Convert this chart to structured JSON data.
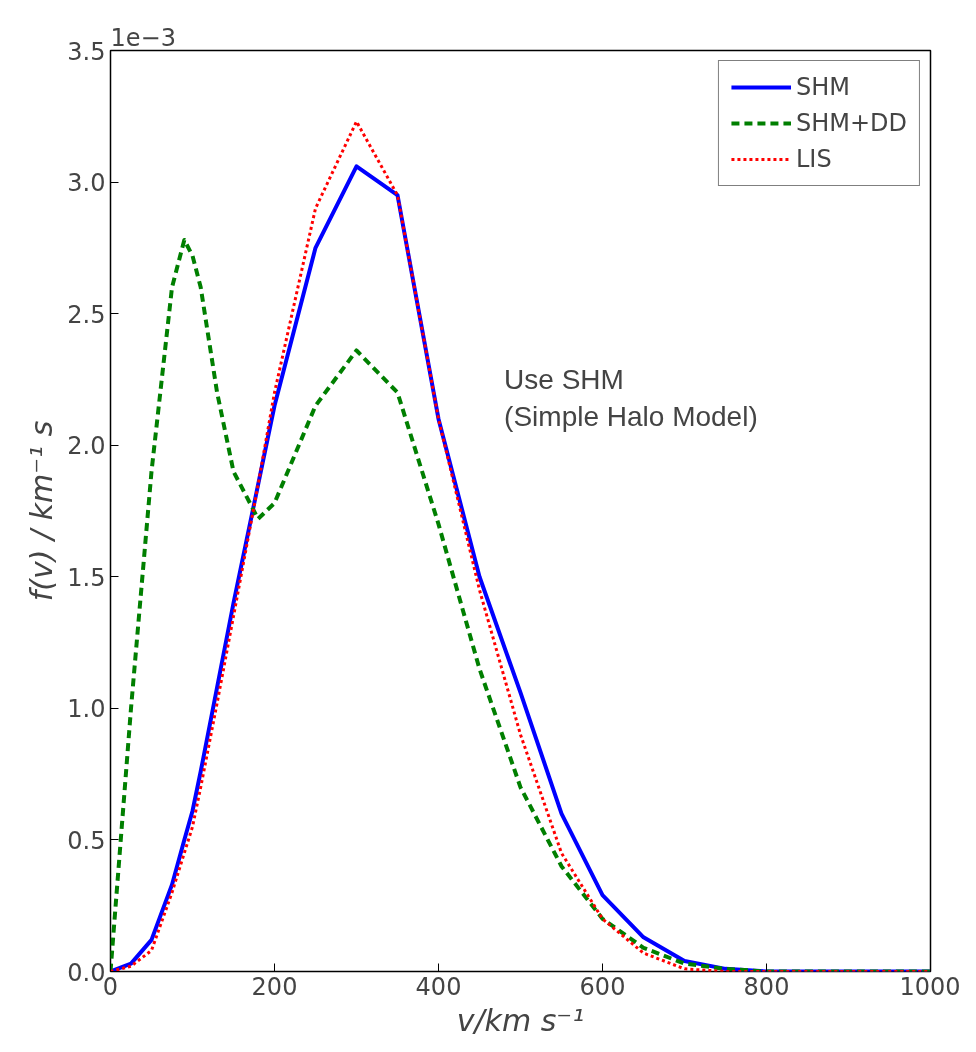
{
  "chart_data": {
    "type": "line",
    "xlabel": "v/km s⁻¹",
    "ylabel": "f(v) / km⁻¹ s",
    "x": [
      0,
      25,
      50,
      75,
      90,
      100,
      110,
      130,
      150,
      180,
      200,
      250,
      300,
      350,
      400,
      450,
      500,
      550,
      600,
      650,
      700,
      750,
      800,
      900,
      1000
    ],
    "series": [
      {
        "name": "SHM",
        "color": "#0000ff",
        "line_style": "solid",
        "values": [
          0,
          0.03,
          0.12,
          0.33,
          0.5,
          0.61,
          0.76,
          1.08,
          1.4,
          1.85,
          2.15,
          2.75,
          3.06,
          2.95,
          2.1,
          1.5,
          1.06,
          0.6,
          0.29,
          0.13,
          0.04,
          0.01,
          0,
          0,
          0
        ]
      },
      {
        "name": "SHM+DD",
        "color": "#007f00",
        "line_style": "dashed",
        "values": [
          0,
          1.0,
          1.9,
          2.6,
          2.78,
          2.72,
          2.6,
          2.2,
          1.9,
          1.72,
          1.78,
          2.15,
          2.36,
          2.2,
          1.7,
          1.15,
          0.7,
          0.4,
          0.2,
          0.09,
          0.03,
          0.01,
          0,
          0,
          0
        ]
      },
      {
        "name": "LIS",
        "color": "#ff0000",
        "line_style": "dotted",
        "values": [
          0,
          0.02,
          0.08,
          0.3,
          0.45,
          0.55,
          0.7,
          1.02,
          1.35,
          1.85,
          2.2,
          2.9,
          3.23,
          2.95,
          2.1,
          1.45,
          0.9,
          0.45,
          0.2,
          0.07,
          0.01,
          0,
          0,
          0,
          0
        ]
      }
    ],
    "xlim": [
      0,
      1000
    ],
    "ylim": [
      0,
      3.5
    ],
    "xticks": [
      0,
      200,
      400,
      600,
      800,
      1000
    ],
    "yticks": [
      {
        "value": 0,
        "label": "0.0"
      },
      {
        "value": 0.5,
        "label": "0.5"
      },
      {
        "value": 1,
        "label": "1.0"
      },
      {
        "value": 1.5,
        "label": "1.5"
      },
      {
        "value": 2,
        "label": "2.0"
      },
      {
        "value": 2.5,
        "label": "2.5"
      },
      {
        "value": 3,
        "label": "3.0"
      },
      {
        "value": 3.5,
        "label": "3.5"
      }
    ],
    "grid": false,
    "legend": "top right",
    "annotations": [
      "1e−3",
      "Use SHM\n(Simple Halo Model)"
    ]
  }
}
